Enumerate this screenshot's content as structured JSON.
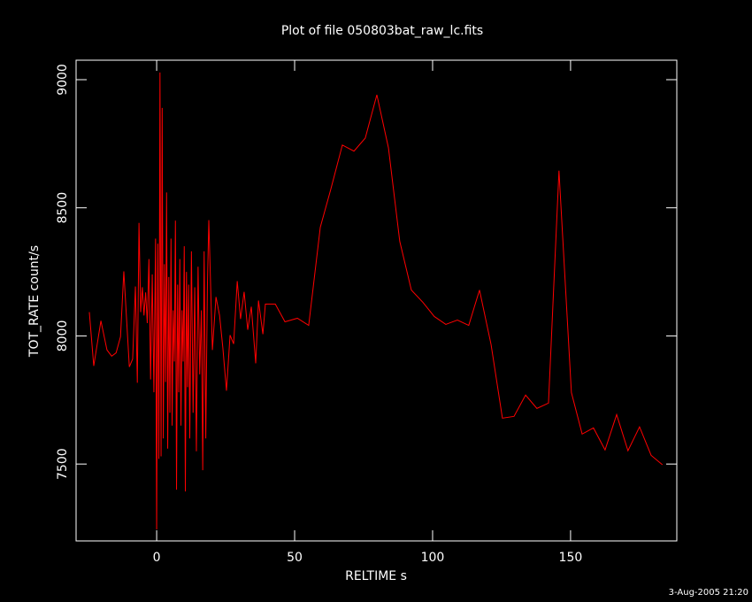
{
  "chart_data": {
    "type": "line",
    "title": "Plot of file 050803bat_raw_lc.fits",
    "x_label": "RELTIME  s",
    "y_label": "TOT_RATE  count/s",
    "footer": "3-Aug-2005 21:20",
    "xlim": [
      -29.2,
      188.5
    ],
    "ylim": [
      7200,
      9076
    ],
    "xticks": [
      0,
      50,
      100,
      150
    ],
    "yticks": [
      7500,
      8000,
      8500,
      9000
    ],
    "series": [
      {
        "color": "#ff0000",
        "x": [
          -24.4,
          -22.8,
          -20.2,
          -18,
          -16.3,
          -14.7,
          -13.1,
          -11.9,
          -9.9,
          -8.7,
          -7.7,
          -7,
          -6.4,
          -5.8,
          -5.2,
          -4.6,
          -4.0,
          -3.4,
          -2.8,
          -2.2,
          -1.6,
          -1.0,
          -0.4,
          0.0,
          0.4,
          0.8,
          1.2,
          1.6,
          2.0,
          2.4,
          2.8,
          3.2,
          3.6,
          4.0,
          4.4,
          4.8,
          5.2,
          5.6,
          6.0,
          6.4,
          6.8,
          7.2,
          7.6,
          8.0,
          8.4,
          8.8,
          9.2,
          9.6,
          10.0,
          10.4,
          10.8,
          11.2,
          11.6,
          12.0,
          12.6,
          13.2,
          13.8,
          14.4,
          15.0,
          15.6,
          16.2,
          16.7,
          17.2,
          17.8,
          18.4,
          18.9,
          20.2,
          21.5,
          22.8,
          24,
          25.3,
          26.6,
          27.9,
          29.2,
          30.4,
          31.7,
          33,
          34.3,
          35.9,
          36.9,
          38.5,
          39.4,
          43,
          46.5,
          51,
          55.1,
          59.3,
          63.1,
          67.3,
          71.5,
          75.6,
          79.8,
          84,
          88.1,
          92.3,
          96.5,
          100.6,
          104.8,
          109,
          113.1,
          117,
          121.2,
          125.3,
          129.5,
          133.7,
          137.8,
          142,
          145.8,
          150.3,
          154.2,
          158.3,
          162.5,
          166.7,
          170.8,
          175,
          179.2,
          183.3
        ],
        "values": [
          8093,
          7883,
          8059,
          7945,
          7921,
          7934,
          7997,
          8252,
          7879,
          7910,
          8193,
          7817,
          8441,
          8093,
          8190,
          8080,
          8170,
          8050,
          8300,
          7830,
          8240,
          7780,
          8380,
          7245,
          8360,
          7520,
          9028,
          7530,
          8890,
          7600,
          8280,
          7820,
          8560,
          7560,
          8230,
          7700,
          8380,
          7650,
          8100,
          7900,
          8450,
          7400,
          8200,
          7780,
          8300,
          7650,
          8100,
          7900,
          8350,
          7393,
          8250,
          7800,
          8200,
          7600,
          8330,
          7700,
          8190,
          7550,
          8270,
          7850,
          8100,
          7476,
          8330,
          7600,
          8200,
          8452,
          7945,
          8152,
          8080,
          7952,
          7786,
          8003,
          7969,
          8214,
          8066,
          8172,
          8024,
          8114,
          7893,
          8138,
          8007,
          8124,
          8124,
          8055,
          8069,
          8041,
          8424,
          8572,
          8745,
          8721,
          8772,
          8941,
          8734,
          8369,
          8179,
          8131,
          8076,
          8045,
          8062,
          8041,
          8179,
          7966,
          7679,
          7686,
          7769,
          7717,
          7738,
          8645,
          7779,
          7617,
          7641,
          7555,
          7693,
          7552,
          7645,
          7534,
          7497
        ]
      }
    ]
  }
}
